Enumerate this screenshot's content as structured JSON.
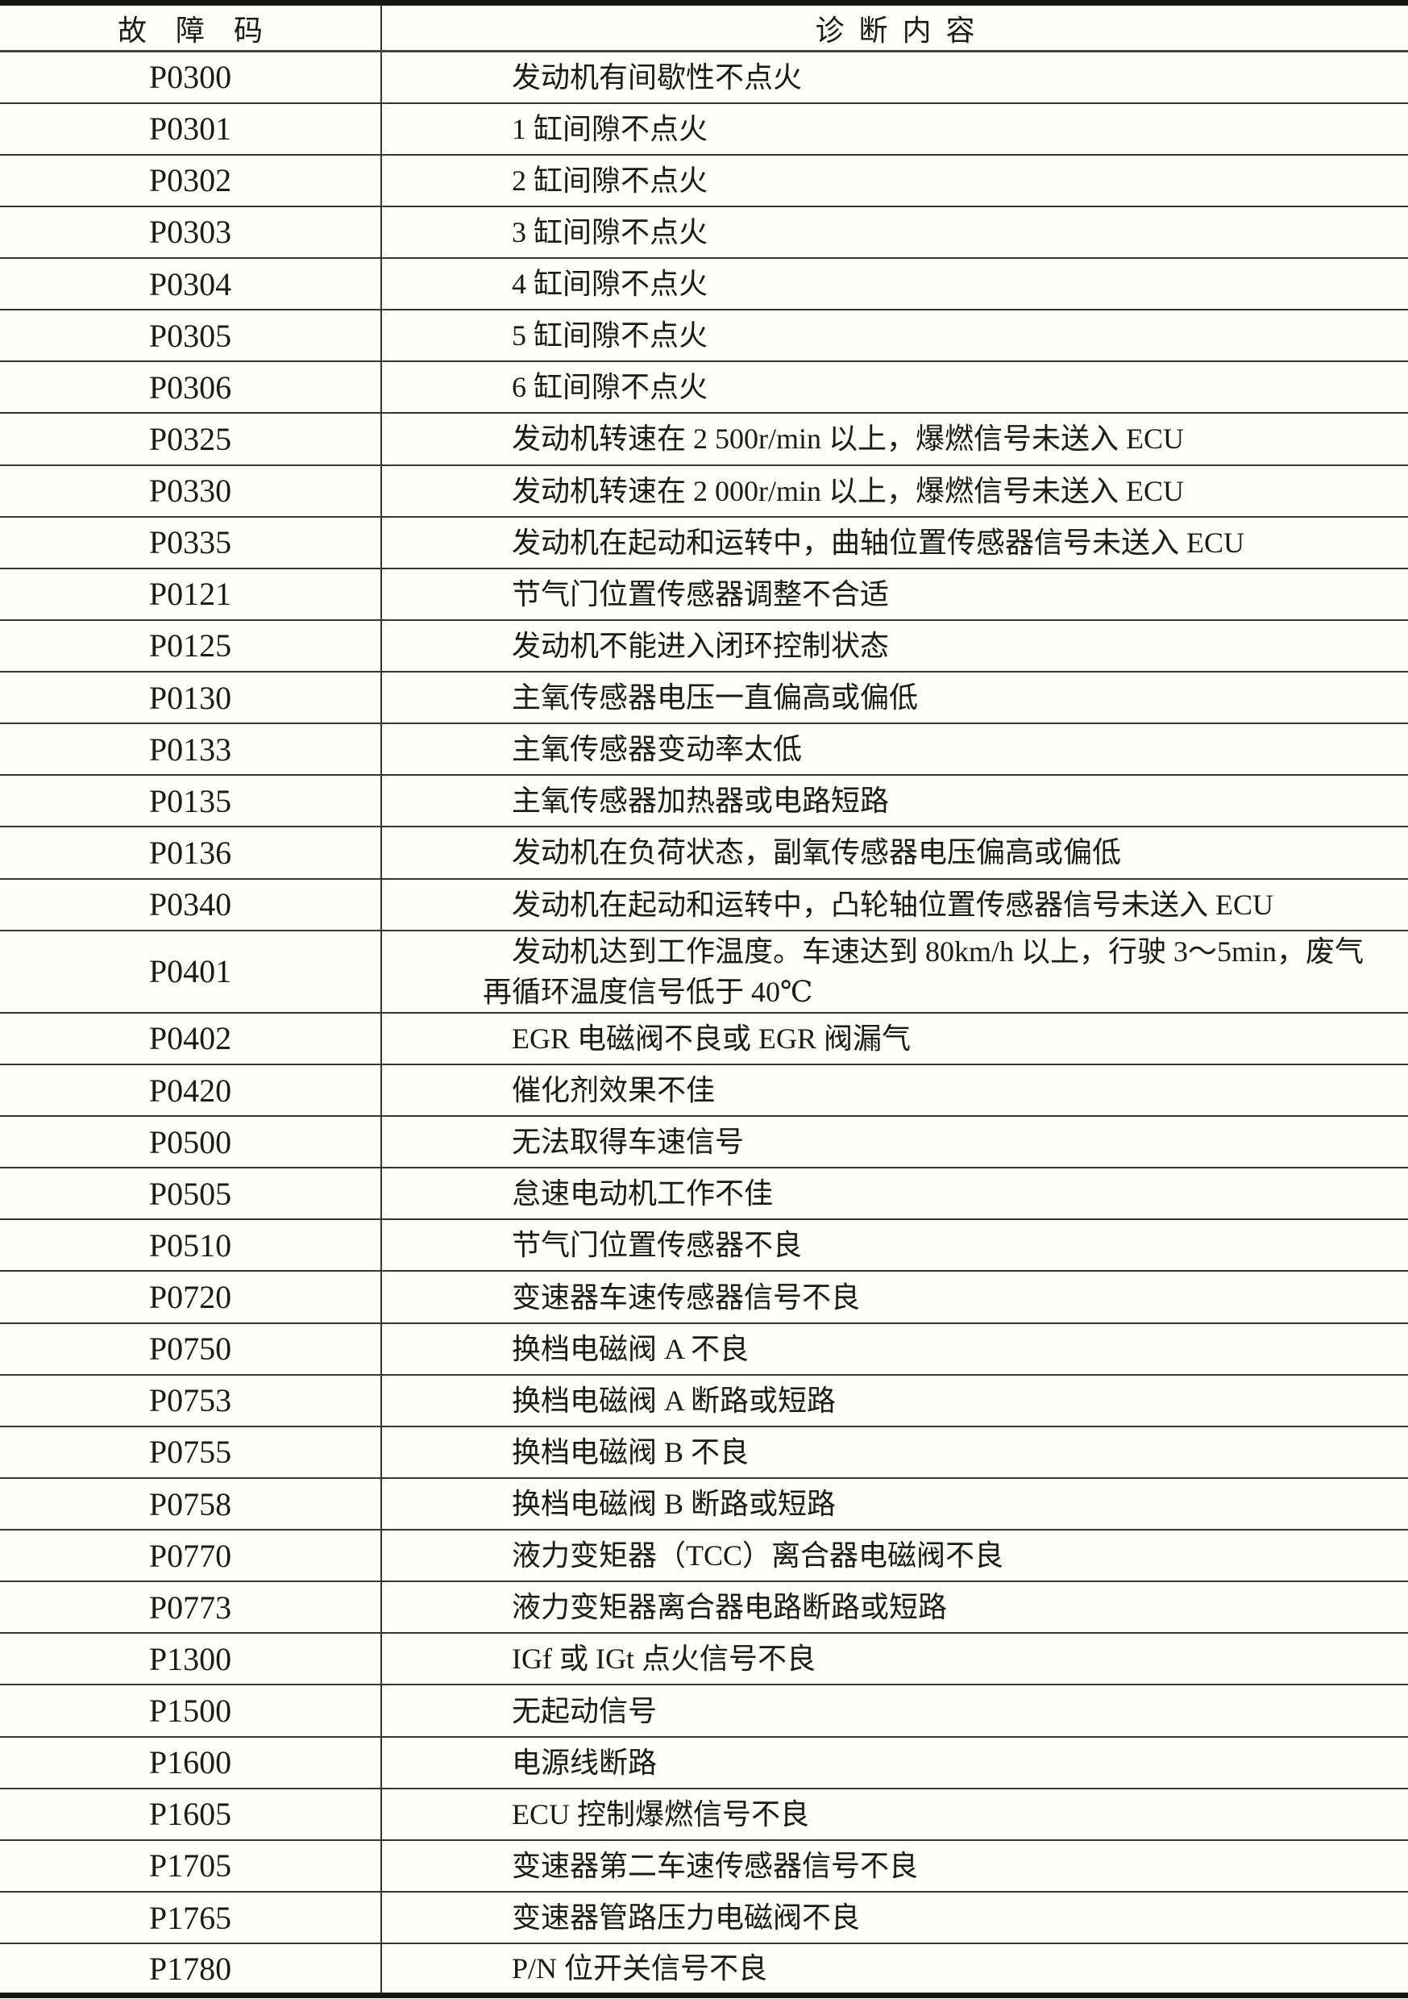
{
  "table": {
    "headers": {
      "code": "故障码",
      "content": "诊断内容"
    },
    "rows": [
      {
        "code": "P0300",
        "content": "发动机有间歇性不点火"
      },
      {
        "code": "P0301",
        "content": "1 缸间隙不点火"
      },
      {
        "code": "P0302",
        "content": "2 缸间隙不点火"
      },
      {
        "code": "P0303",
        "content": "3 缸间隙不点火"
      },
      {
        "code": "P0304",
        "content": "4 缸间隙不点火"
      },
      {
        "code": "P0305",
        "content": "5 缸间隙不点火"
      },
      {
        "code": "P0306",
        "content": "6 缸间隙不点火"
      },
      {
        "code": "P0325",
        "content": "发动机转速在 2 500r/min 以上，爆燃信号未送入 ECU"
      },
      {
        "code": "P0330",
        "content": "发动机转速在 2 000r/min 以上，爆燃信号未送入 ECU"
      },
      {
        "code": "P0335",
        "content": "发动机在起动和运转中，曲轴位置传感器信号未送入 ECU"
      },
      {
        "code": "P0121",
        "content": "节气门位置传感器调整不合适"
      },
      {
        "code": "P0125",
        "content": "发动机不能进入闭环控制状态"
      },
      {
        "code": "P0130",
        "content": "主氧传感器电压一直偏高或偏低"
      },
      {
        "code": "P0133",
        "content": "主氧传感器变动率太低"
      },
      {
        "code": "P0135",
        "content": "主氧传感器加热器或电路短路"
      },
      {
        "code": "P0136",
        "content": "发动机在负荷状态，副氧传感器电压偏高或偏低"
      },
      {
        "code": "P0340",
        "content": "发动机在起动和运转中，凸轮轴位置传感器信号未送入 ECU"
      },
      {
        "code": "P0401",
        "content": "发动机达到工作温度。车速达到 80km/h 以上，行驶 3～5min，废气\n再循环温度信号低于 40℃"
      },
      {
        "code": "P0402",
        "content": "EGR 电磁阀不良或 EGR 阀漏气"
      },
      {
        "code": "P0420",
        "content": "催化剂效果不佳"
      },
      {
        "code": "P0500",
        "content": "无法取得车速信号"
      },
      {
        "code": "P0505",
        "content": "怠速电动机工作不佳"
      },
      {
        "code": "P0510",
        "content": "节气门位置传感器不良"
      },
      {
        "code": "P0720",
        "content": "变速器车速传感器信号不良"
      },
      {
        "code": "P0750",
        "content": "换档电磁阀 A 不良"
      },
      {
        "code": "P0753",
        "content": "换档电磁阀 A 断路或短路"
      },
      {
        "code": "P0755",
        "content": "换档电磁阀 B 不良"
      },
      {
        "code": "P0758",
        "content": "换档电磁阀 B 断路或短路"
      },
      {
        "code": "P0770",
        "content": "液力变矩器（TCC）离合器电磁阀不良"
      },
      {
        "code": "P0773",
        "content": "液力变矩器离合器电路断路或短路"
      },
      {
        "code": "P1300",
        "content": "IGf 或 IGt 点火信号不良"
      },
      {
        "code": "P1500",
        "content": "无起动信号"
      },
      {
        "code": "P1600",
        "content": "电源线断路"
      },
      {
        "code": "P1605",
        "content": "ECU 控制爆燃信号不良"
      },
      {
        "code": "P1705",
        "content": "变速器第二车速传感器信号不良"
      },
      {
        "code": "P1765",
        "content": "变速器管路压力电磁阀不良"
      },
      {
        "code": "P1780",
        "content": "P/N 位开关信号不良"
      }
    ]
  }
}
